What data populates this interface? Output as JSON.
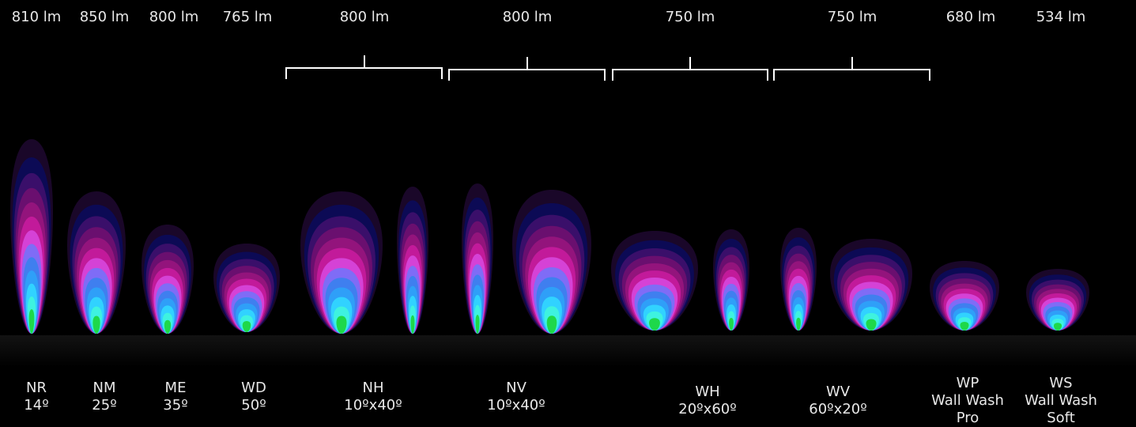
{
  "lumens": [
    {
      "label": "810 lm"
    },
    {
      "label": "850 lm"
    },
    {
      "label": "800 lm"
    },
    {
      "label": "765 lm"
    },
    {
      "label": "800 lm"
    },
    {
      "label": "800 lm"
    },
    {
      "label": "750 lm"
    },
    {
      "label": "750 lm"
    },
    {
      "label": "680 lm"
    },
    {
      "label": "534 lm"
    }
  ],
  "optics": [
    {
      "lines": [
        "NR",
        "14º"
      ]
    },
    {
      "lines": [
        "NM",
        "25º"
      ]
    },
    {
      "lines": [
        "ME",
        "35º"
      ]
    },
    {
      "lines": [
        "WD",
        "50º"
      ]
    },
    {
      "lines": [
        "NH",
        "10ºx40º"
      ]
    },
    {
      "lines": [
        "NV",
        "10ºx40º"
      ]
    },
    {
      "lines": [
        "WH",
        "20ºx60º"
      ]
    },
    {
      "lines": [
        "WV",
        "60ºx20º"
      ]
    },
    {
      "lines": [
        "WP",
        "Wall Wash",
        "Pro"
      ]
    },
    {
      "lines": [
        "WS",
        "Wall Wash",
        "Soft"
      ]
    }
  ],
  "colors": {
    "background": "#000000",
    "text": "#e8e8e8",
    "bracket": "#ffffff",
    "falsecolor_scale": [
      "#1e0830",
      "#0c0a55",
      "#3a0f6a",
      "#6a0f6f",
      "#93147c",
      "#c21a9a",
      "#d542d6",
      "#7f6cf6",
      "#3f7fef",
      "#2f9ff8",
      "#31d2ff",
      "#3ef2e0",
      "#1ed84a"
    ]
  }
}
